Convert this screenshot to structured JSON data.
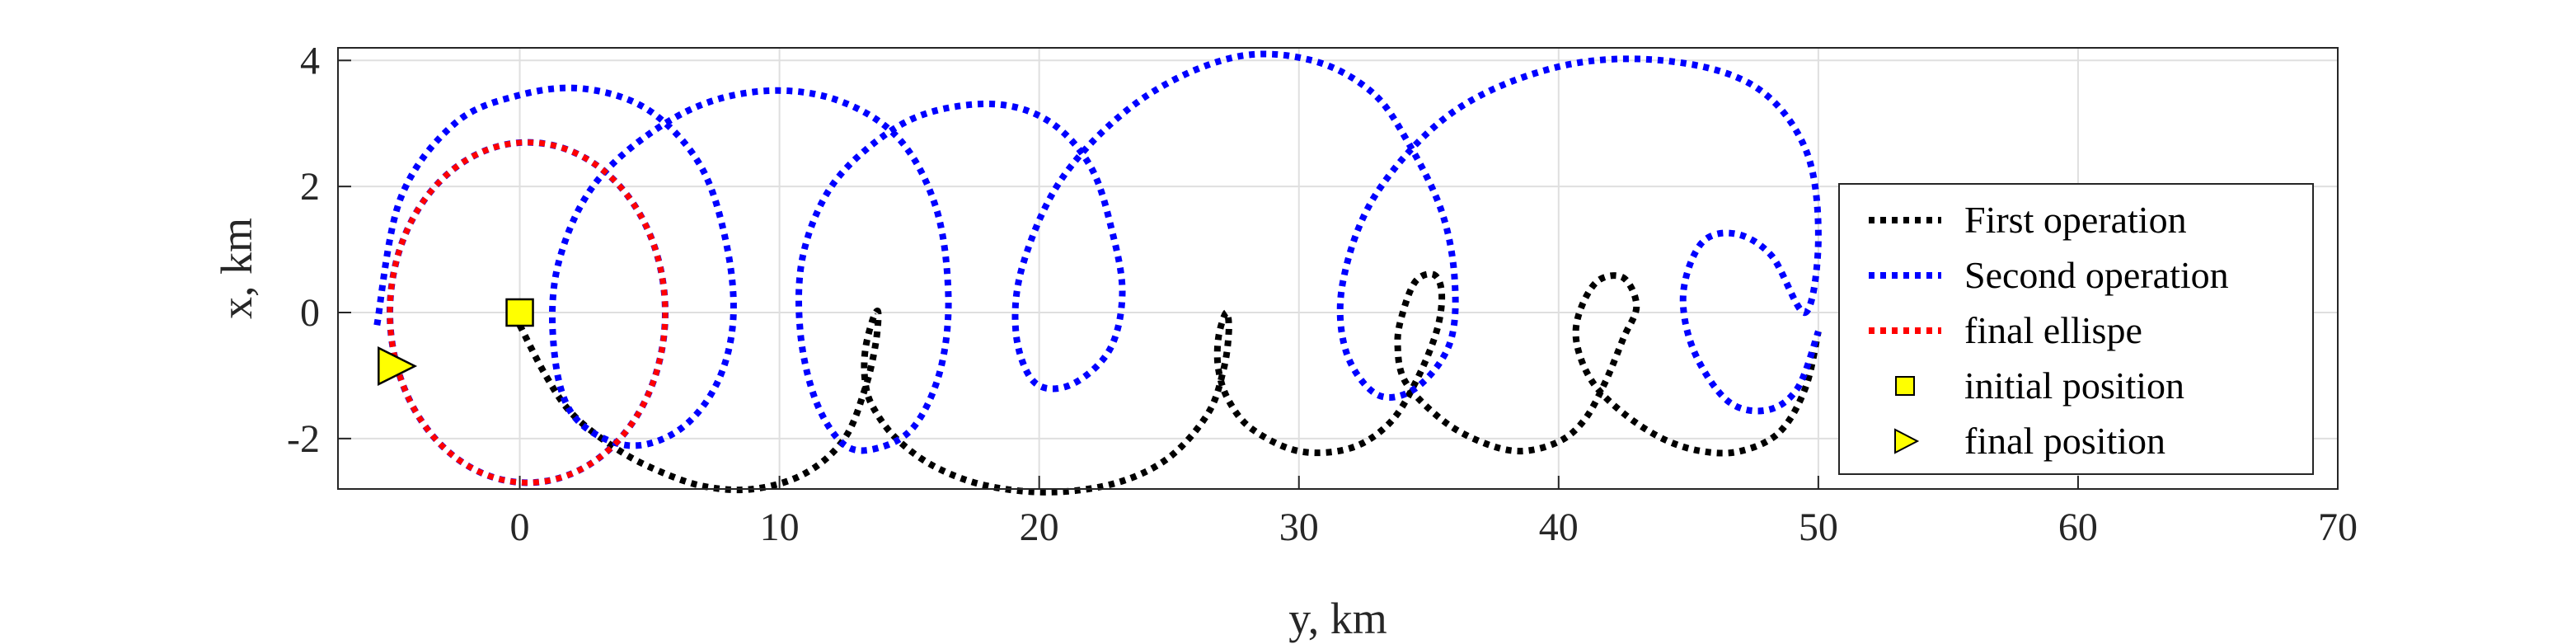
{
  "chart_data": {
    "type": "line",
    "title": "",
    "xlabel": "y, km",
    "ylabel": "x, km",
    "xlim": [
      -7,
      70
    ],
    "ylim": [
      -2.8,
      4.2
    ],
    "xticks": [
      "0",
      "10",
      "20",
      "30",
      "40",
      "50",
      "60",
      "70"
    ],
    "yticks": [
      "-2",
      "0",
      "2",
      "4"
    ],
    "grid": true,
    "legend_position": "right",
    "series": [
      {
        "name": "First operation",
        "color": "#000000",
        "style": "dotted",
        "x": [
          0,
          1,
          2,
          3.5,
          5,
          7,
          9,
          11,
          12.5,
          13.3,
          13.7,
          13.8,
          13.6,
          13.3,
          13.3,
          13.6,
          14.5,
          16,
          18,
          20.5,
          23,
          25,
          26.5,
          27.1,
          27.3,
          27.2,
          26.9,
          26.9,
          27.3,
          28.2,
          30,
          32,
          33.5,
          34.5,
          35.3,
          35.5,
          35.2,
          34.5,
          34,
          33.8,
          34.1,
          35.5,
          37,
          38.5,
          40,
          41,
          41.8,
          42.5,
          43,
          42.5,
          41.5,
          40.8,
          40.7,
          41.3,
          42.5,
          44,
          45.5,
          47,
          48.5,
          49.5,
          50
        ],
        "y": [
          -0.2,
          -1.0,
          -1.6,
          -2.1,
          -2.45,
          -2.75,
          -2.8,
          -2.55,
          -2.0,
          -1.2,
          -0.5,
          0.0,
          -0.1,
          -0.6,
          -1.1,
          -1.5,
          -2.0,
          -2.45,
          -2.75,
          -2.85,
          -2.7,
          -2.3,
          -1.6,
          -0.9,
          -0.3,
          0.0,
          -0.4,
          -0.9,
          -1.4,
          -1.85,
          -2.2,
          -2.15,
          -1.75,
          -1.1,
          -0.3,
          0.3,
          0.6,
          0.5,
          0.0,
          -0.5,
          -1.1,
          -1.7,
          -2.05,
          -2.2,
          -2.05,
          -1.7,
          -1.1,
          -0.4,
          0.1,
          0.55,
          0.5,
          0.0,
          -0.5,
          -1.1,
          -1.6,
          -2.0,
          -2.2,
          -2.2,
          -1.9,
          -1.2,
          -0.3
        ]
      },
      {
        "name": "Second operation",
        "color": "#0000ff",
        "style": "dotted",
        "x": [
          -5.5,
          -4.6,
          -2.5,
          0,
          2.5,
          5,
          7,
          8,
          8.2,
          7.5,
          6,
          4,
          2,
          1.3,
          1.5,
          3,
          6,
          9,
          12,
          14.5,
          16,
          16.5,
          16.2,
          15.2,
          13.8,
          12.5,
          11.4,
          10.8,
          10.9,
          12,
          14,
          16,
          18.5,
          20.5,
          22,
          22.8,
          23.2,
          22.7,
          21.2,
          19.8,
          19.1,
          19.4,
          21,
          24,
          27.5,
          30.5,
          32.8,
          34.2,
          35.5,
          36,
          35.8,
          34.5,
          33,
          31.8,
          31.7,
          33,
          36,
          40,
          44,
          47.5,
          49.5,
          50,
          49.5,
          48.2,
          46.8,
          45.5,
          44.8,
          45.2,
          46.5,
          48,
          49.2,
          50
        ],
        "y": [
          -0.2,
          1.8,
          3.0,
          3.45,
          3.55,
          3.2,
          2.3,
          1.0,
          -0.2,
          -1.2,
          -1.9,
          -2.1,
          -1.6,
          -0.5,
          0.8,
          2.1,
          3.1,
          3.5,
          3.4,
          2.8,
          1.7,
          0.3,
          -0.9,
          -1.8,
          -2.15,
          -2.1,
          -1.4,
          -0.3,
          0.9,
          2.0,
          2.8,
          3.2,
          3.3,
          3.0,
          2.3,
          1.3,
          0.3,
          -0.6,
          -1.15,
          -1.1,
          -0.3,
          0.8,
          2.2,
          3.4,
          4.05,
          4.0,
          3.5,
          2.7,
          1.6,
          0.5,
          -0.5,
          -1.2,
          -1.3,
          -0.6,
          0.5,
          1.9,
          3.2,
          3.9,
          4.0,
          3.6,
          2.6,
          1.2,
          0.0,
          0.9,
          1.25,
          1.1,
          0.3,
          -0.6,
          -1.4,
          -1.55,
          -1.2,
          -0.3
        ]
      },
      {
        "name": "final ellispe",
        "color": "#ff0000",
        "style": "dotted",
        "ellipse": {
          "center": [
            0.3,
            0
          ],
          "radius_y_km": 5.3,
          "radius_x_km": 2.7
        }
      }
    ],
    "markers": [
      {
        "name": "initial position",
        "shape": "square",
        "fill": "#ffff00",
        "edge": "#000000",
        "x": 0,
        "y": 0
      },
      {
        "name": "final position",
        "shape": "triangle-right",
        "fill": "#ffff00",
        "edge": "#000000",
        "x": -4.8,
        "y": -0.85
      }
    ],
    "legend": [
      {
        "label": "First operation",
        "color": "#000000",
        "type": "line"
      },
      {
        "label": "Second operation",
        "color": "#0000ff",
        "type": "line"
      },
      {
        "label": "final ellispe",
        "color": "#ff0000",
        "type": "line"
      },
      {
        "label": "initial position",
        "color": "#ffff00",
        "type": "square"
      },
      {
        "label": "final position",
        "color": "#ffff00",
        "type": "triangle-right"
      }
    ]
  }
}
